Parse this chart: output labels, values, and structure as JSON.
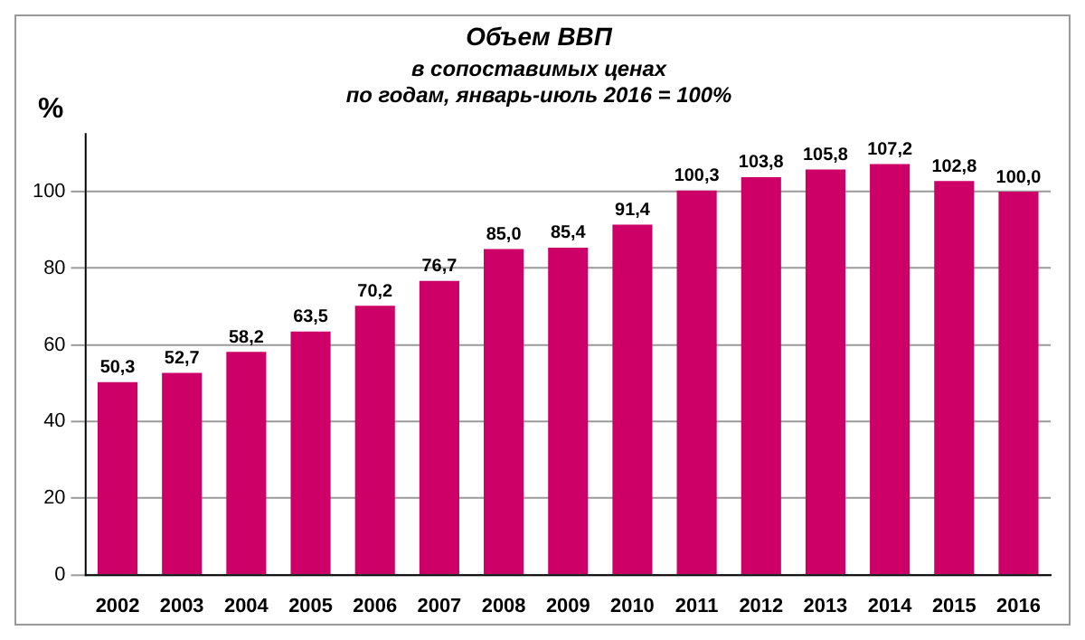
{
  "chart_data": {
    "type": "bar",
    "title": "Объем ВВП",
    "subtitle": "в сопоставимых ценах\nпо годам, январь-июль 2016 = 100%",
    "ylabel": "%",
    "categories": [
      "2002",
      "2003",
      "2004",
      "2005",
      "2006",
      "2007",
      "2008",
      "2009",
      "2010",
      "2011",
      "2012",
      "2013",
      "2014",
      "2015",
      "2016"
    ],
    "values": [
      50.3,
      52.7,
      58.2,
      63.5,
      70.2,
      76.7,
      85.0,
      85.4,
      91.4,
      100.3,
      103.8,
      105.8,
      107.2,
      102.8,
      100.0
    ],
    "value_labels": [
      "50,3",
      "52,7",
      "58,2",
      "63,5",
      "70,2",
      "76,7",
      "85,0",
      "85,4",
      "91,4",
      "100,3",
      "103,8",
      "105,8",
      "107,2",
      "102,8",
      "100,0"
    ],
    "color": "#cc0066",
    "ylim": [
      0,
      115
    ],
    "yticks": [
      0,
      20,
      40,
      60,
      80,
      100
    ],
    "grid": "y",
    "legend": false
  }
}
